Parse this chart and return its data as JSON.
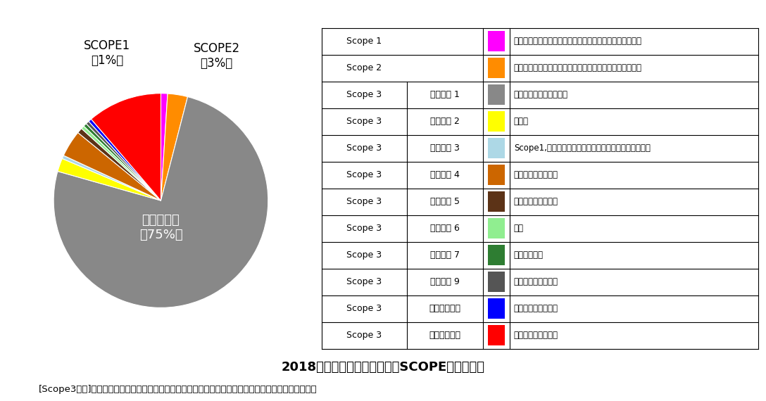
{
  "pie_values": [
    1,
    3,
    75,
    2,
    0.5,
    4,
    0.8,
    0.5,
    0.5,
    0.5,
    0.5,
    11.2
  ],
  "pie_colors": [
    "#FF00FF",
    "#FF8C00",
    "#888888",
    "#FFFF00",
    "#ADD8E6",
    "#CC6600",
    "#5C3317",
    "#90EE90",
    "#2E7D32",
    "#555555",
    "#0000FF",
    "#FF0000"
  ],
  "title_main": "2018年度　百貨店業におけるSCOPE３算出結果",
  "title_sub": "[Scope3算定]千葉大学大学院　融合理工学府地球環境科学専攻都市環境システムコース　松野泰也教授",
  "table_rows": [
    {
      "col1": "Scope 1",
      "col2": "",
      "color": "#FF00FF",
      "col3": "事業者自らによる温室効果ガスの直接排出（燃料の燃焼）"
    },
    {
      "col1": "Scope 2",
      "col2": "",
      "color": "#FF8C00",
      "col3": "他社から供給された電気、熱・蒸気の使用に伴う間接排出"
    },
    {
      "col1": "Scope 3",
      "col2": "カテゴリ 1",
      "color": "#888888",
      "col3": "購入した製品・サービス"
    },
    {
      "col1": "Scope 3",
      "col2": "カテゴリ 2",
      "color": "#FFFF00",
      "col3": "資本財"
    },
    {
      "col1": "Scope 3",
      "col2": "カテゴリ 3",
      "color": "#ADD8E6",
      "col3": "Scope1,２に含まれない燃料およびエネルギー関連活動"
    },
    {
      "col1": "Scope 3",
      "col2": "カテゴリ 4",
      "color": "#CC6600",
      "col3": "輸送・配送（上流）"
    },
    {
      "col1": "Scope 3",
      "col2": "カテゴリ 5",
      "color": "#5C3317",
      "col3": "事業から出る廃棄物"
    },
    {
      "col1": "Scope 3",
      "col2": "カテゴリ 6",
      "color": "#90EE90",
      "col3": "出張"
    },
    {
      "col1": "Scope 3",
      "col2": "カテゴリ 7",
      "color": "#2E7D32",
      "col3": "雇用者の通勤"
    },
    {
      "col1": "Scope 3",
      "col2": "カテゴリ 9",
      "color": "#555555",
      "col3": "輸送・配送（下流）"
    },
    {
      "col1": "Scope 3",
      "col2": "カテゴリ１１",
      "color": "#0000FF",
      "col3": "販売した製品の使用"
    },
    {
      "col1": "Scope 3",
      "col2": "カテゴリ１２",
      "color": "#FF0000",
      "col3": "販売した製品の廃棄"
    }
  ],
  "bg_color": "#FFFFFF",
  "scope1_label": "SCOPE1\n（1%）",
  "scope2_label": "SCOPE2\n（3%）",
  "cat1_label": "カテゴリ１\n（75%）"
}
